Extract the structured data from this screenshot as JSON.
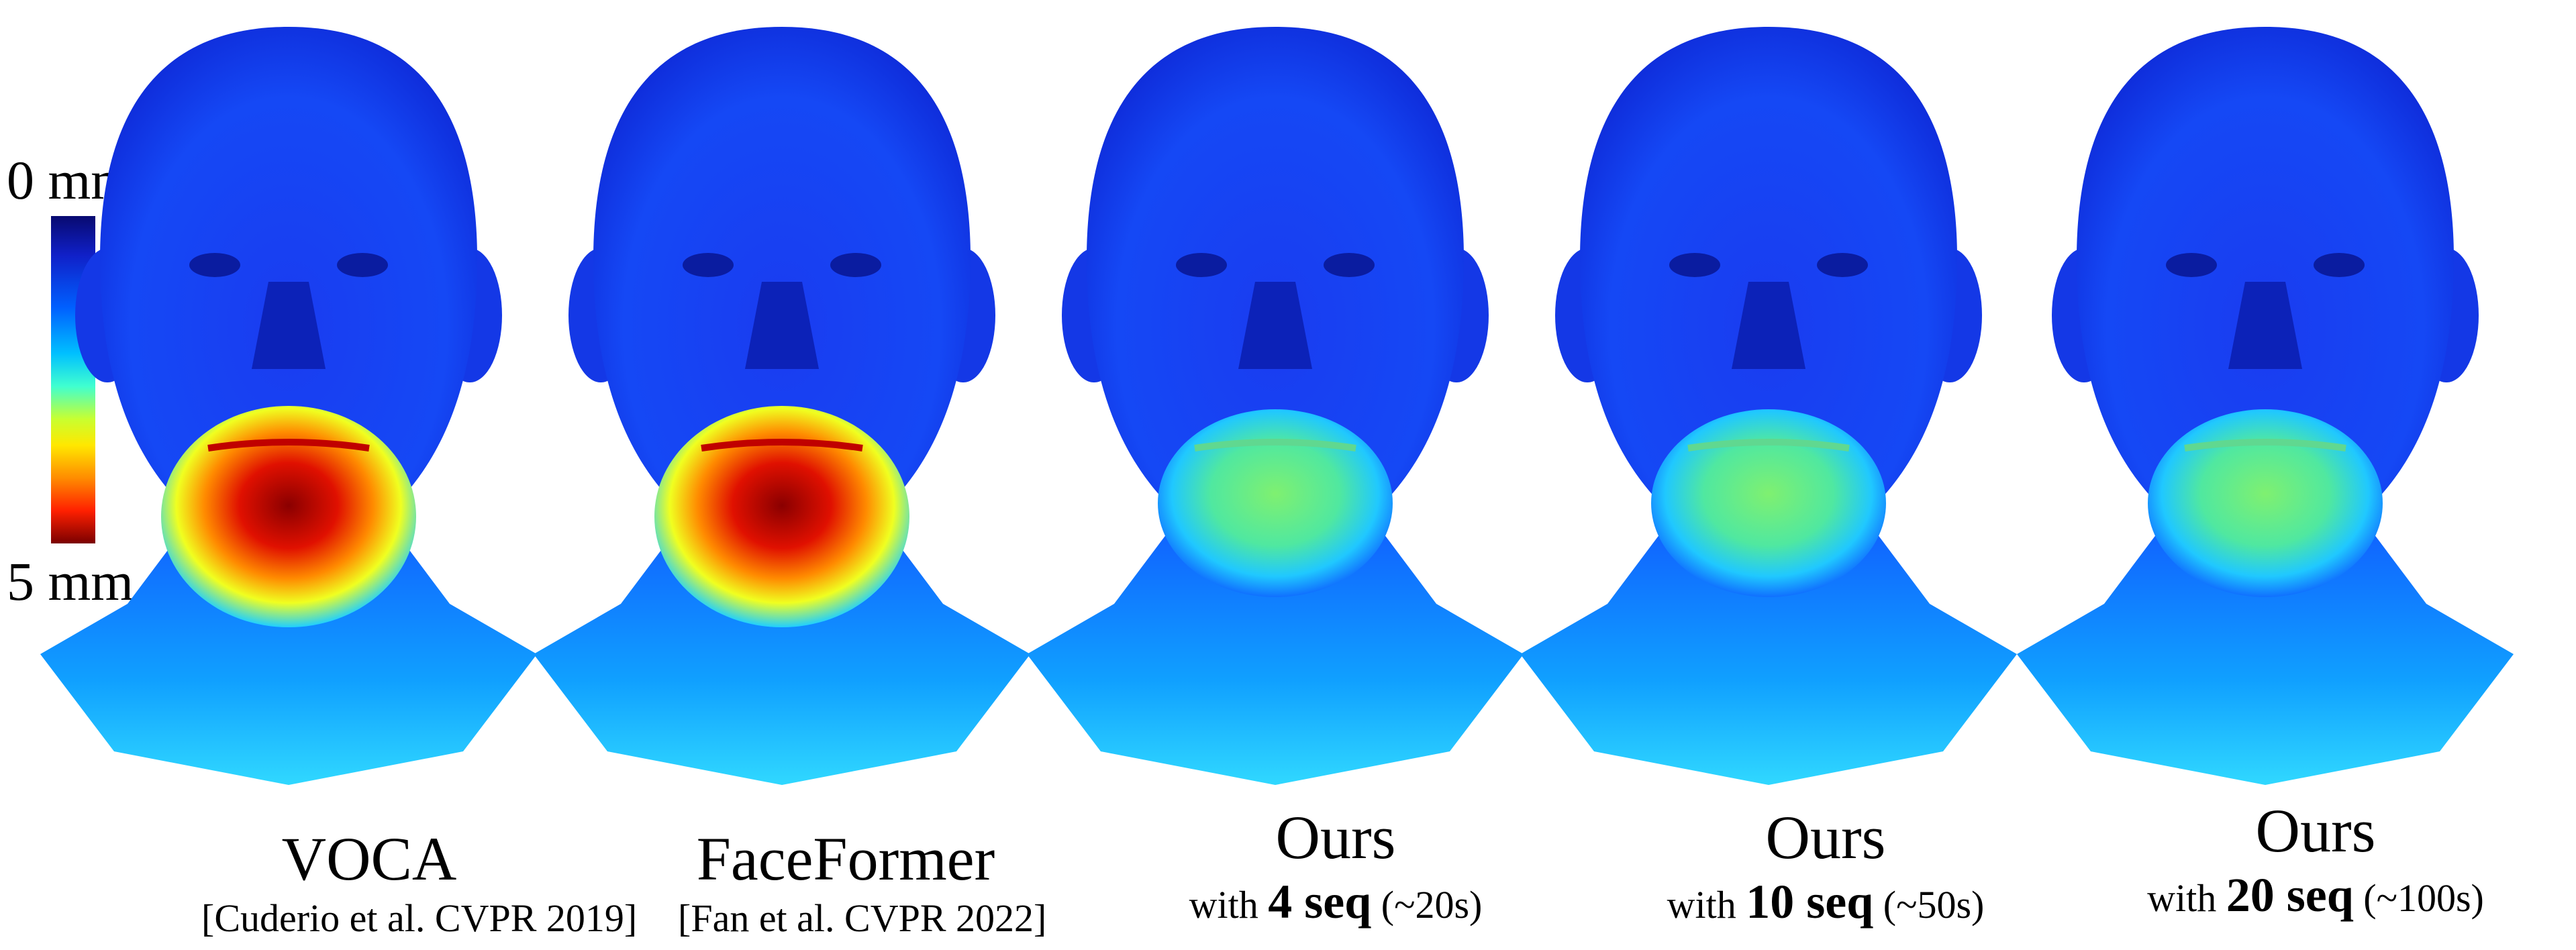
{
  "colorbar": {
    "top_label": "0 mm",
    "bottom_label": "5 mm"
  },
  "panels": [
    {
      "title": "VOCA",
      "subtitle": "[Cuderio et al. CVPR 2019]",
      "error_level": 1.0
    },
    {
      "title": "FaceFormer",
      "subtitle": "[Fan et al. CVPR 2022]",
      "error_level": 0.85
    },
    {
      "title": "Ours",
      "sub_prefix": "with",
      "sub_bold": "4 seq",
      "sub_suffix": "(~20s)",
      "error_level": 0.45
    },
    {
      "title": "Ours",
      "sub_prefix": "with",
      "sub_bold": "10 seq",
      "sub_suffix": "(~50s)",
      "error_level": 0.42
    },
    {
      "title": "Ours",
      "sub_prefix": "with",
      "sub_bold": "20 seq",
      "sub_suffix": "(~100s)",
      "error_level": 0.4
    }
  ]
}
